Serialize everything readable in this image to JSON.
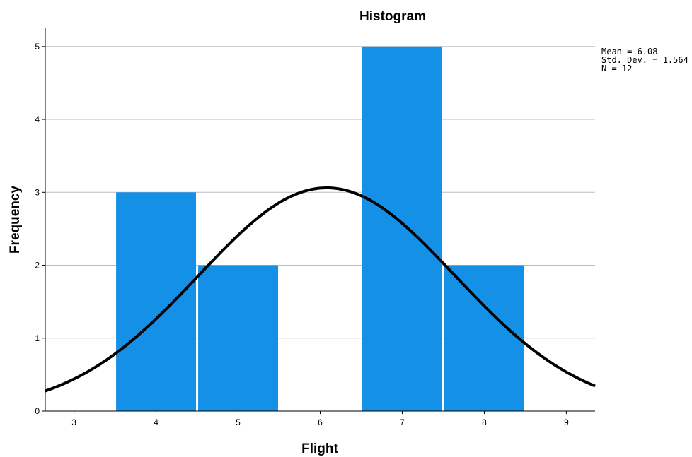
{
  "chart_data": {
    "type": "bar",
    "title": "Histogram",
    "xlabel": "Flight",
    "ylabel": "Frequency",
    "x_ticks": [
      3,
      4,
      5,
      6,
      7,
      8,
      9
    ],
    "y_ticks": [
      0,
      1,
      2,
      3,
      4,
      5
    ],
    "xlim": [
      2.65,
      9.35
    ],
    "ylim": [
      0,
      5.25
    ],
    "bins": [
      {
        "center": 4,
        "count": 3
      },
      {
        "center": 5,
        "count": 2
      },
      {
        "center": 6,
        "count": 0
      },
      {
        "center": 7,
        "count": 5
      },
      {
        "center": 8,
        "count": 2
      }
    ],
    "normal_curve": {
      "mean": 6.08,
      "std_dev": 1.564,
      "n": 12,
      "bin_width": 1
    },
    "stats": [
      "Mean = 6.08",
      "Std. Dev. = 1.564",
      "N = 12"
    ],
    "grid": "horizontal",
    "bar_color": "#1490E6",
    "curve_color": "#000000",
    "grid_color": "#BDBDBD"
  }
}
